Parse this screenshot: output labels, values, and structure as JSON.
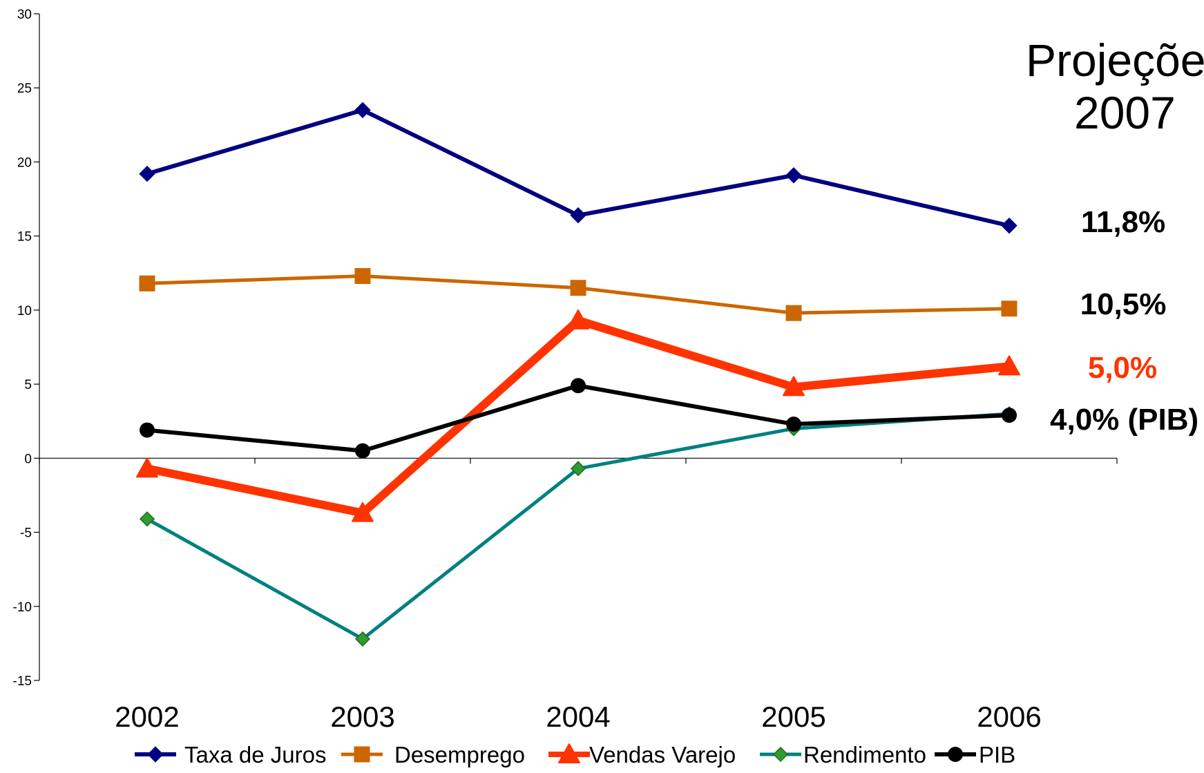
{
  "chart_data": {
    "type": "line",
    "categories": [
      "2002",
      "2003",
      "2004",
      "2005",
      "2006"
    ],
    "ylim": [
      -15,
      30
    ],
    "yticks": [
      -15,
      -10,
      -5,
      0,
      5,
      10,
      15,
      20,
      25,
      30
    ],
    "ytick_labels": [
      "-15",
      "-10",
      "-5",
      "0",
      "5",
      "10",
      "15",
      "20",
      "25",
      "30"
    ],
    "grid": false,
    "legend_position": "bottom",
    "series": [
      {
        "name": "Taxa de Juros",
        "values": [
          19.2,
          23.5,
          16.4,
          19.1,
          15.7
        ],
        "color": "#000080",
        "marker": "diamond",
        "width": 6
      },
      {
        "name": "Desemprego",
        "values": [
          11.8,
          12.3,
          11.5,
          9.8,
          10.1
        ],
        "color": "#CC6600",
        "marker": "square",
        "width": 5
      },
      {
        "name": "Vendas Varejo",
        "values": [
          -0.7,
          -3.7,
          9.3,
          4.8,
          6.2
        ],
        "color": "#FF3300",
        "marker": "triangle",
        "width": 12
      },
      {
        "name": "Rendimento",
        "values": [
          -4.1,
          -12.2,
          -0.7,
          2.0,
          3.0
        ],
        "color": "#008080",
        "marker": "diamond-small",
        "marker_fill": "#339933",
        "width": 5
      },
      {
        "name": "PIB",
        "values": [
          1.9,
          0.5,
          4.9,
          2.3,
          2.9
        ],
        "color": "#000000",
        "marker": "circle",
        "width": 6
      }
    ],
    "annotations": {
      "title_line1": "Projeções",
      "title_line2": "2007",
      "values": [
        {
          "text": "11,8%",
          "color": "#000000"
        },
        {
          "text": "10,5%",
          "color": "#000000"
        },
        {
          "text": "5,0%",
          "color": "#FF3300"
        },
        {
          "text": "4,0% (PIB)",
          "color": "#000000"
        }
      ]
    }
  }
}
